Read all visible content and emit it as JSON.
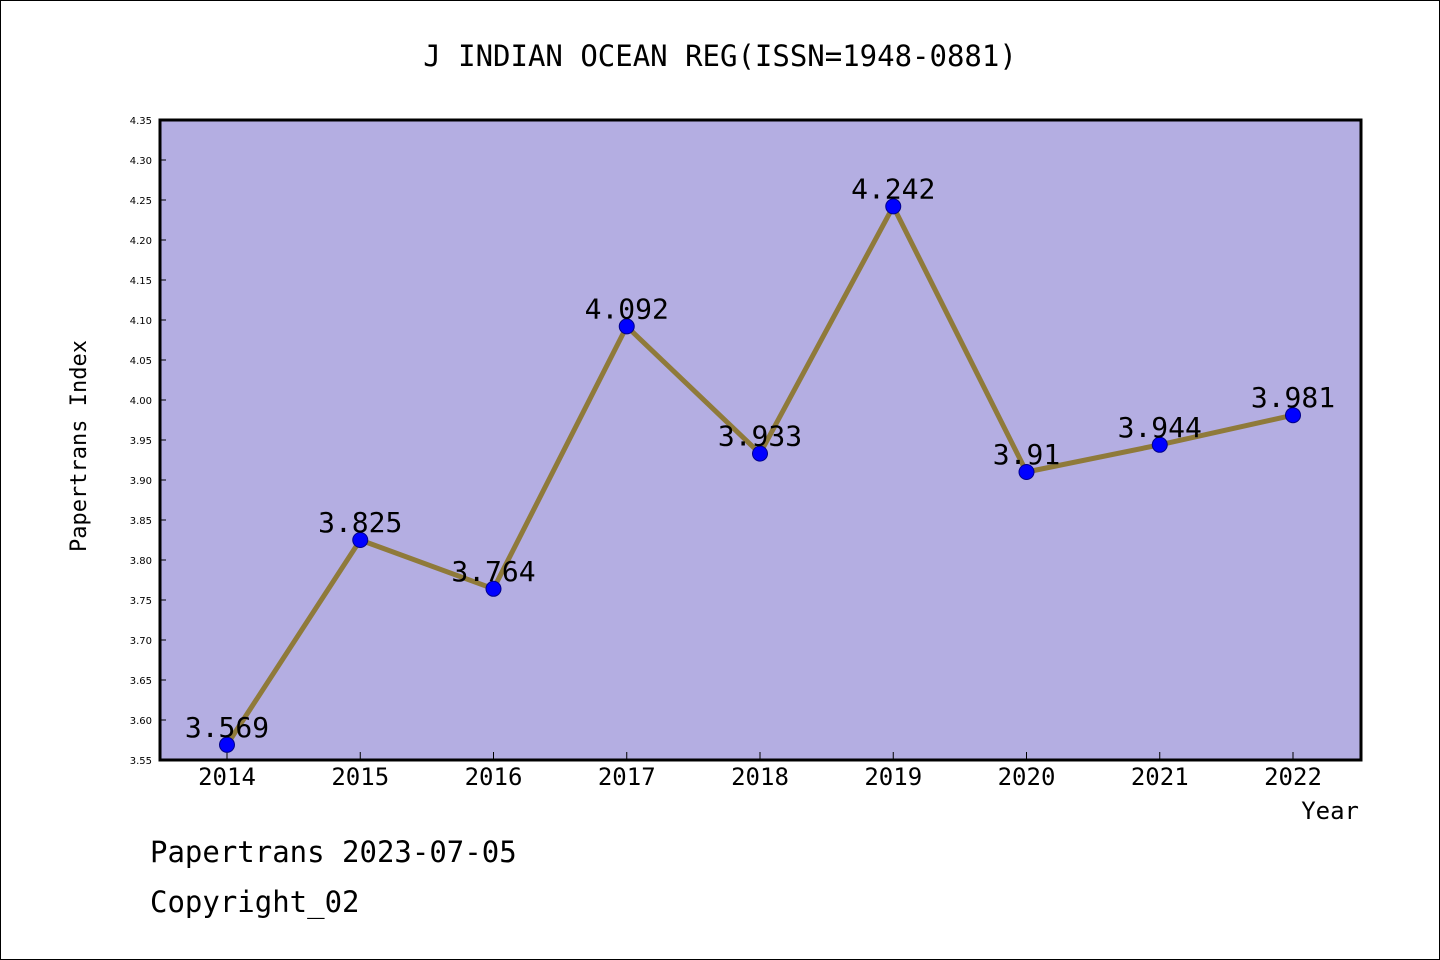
{
  "chart_data": {
    "type": "line",
    "title": "J INDIAN OCEAN REG(ISSN=1948-0881)",
    "xlabel": "Year",
    "ylabel": "Papertrans Index",
    "categories": [
      "2014",
      "2015",
      "2016",
      "2017",
      "2018",
      "2019",
      "2020",
      "2021",
      "2022"
    ],
    "values": [
      3.569,
      3.825,
      3.764,
      4.092,
      3.933,
      4.242,
      3.91,
      3.944,
      3.981
    ],
    "value_labels": [
      "3.569",
      "3.825",
      "3.764",
      "4.092",
      "3.933",
      "4.242",
      "3.91",
      "3.944",
      "3.981"
    ],
    "ylim": [
      3.55,
      4.35
    ],
    "yticks": [
      "3.55",
      "3.60",
      "3.65",
      "3.70",
      "3.75",
      "3.80",
      "3.85",
      "3.90",
      "3.95",
      "4.00",
      "4.05",
      "4.10",
      "4.15",
      "4.20",
      "4.25",
      "4.30",
      "4.35"
    ],
    "legend": "none",
    "grid": false
  },
  "colors": {
    "plot_background": "#b4aee2",
    "line": "#8f7a3a",
    "marker": "#0000ff",
    "marker_edge": "#00008b",
    "axis": "#000000",
    "text": "#000000"
  },
  "footer": {
    "line1": "Papertrans 2023-07-05",
    "line2": "Copyright_02"
  }
}
